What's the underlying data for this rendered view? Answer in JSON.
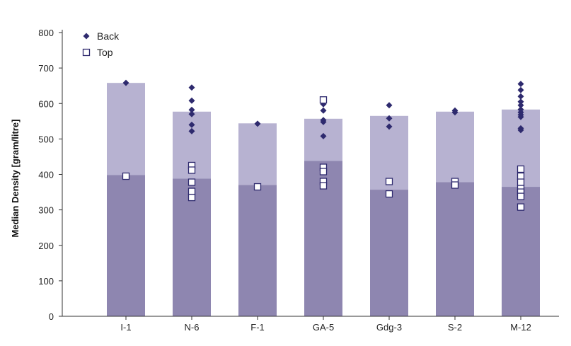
{
  "chart_data": {
    "type": "bar",
    "ylabel": "Median Density [gram/litre]",
    "ylim": [
      0,
      800
    ],
    "yticks": [
      0,
      100,
      200,
      300,
      400,
      500,
      600,
      700,
      800
    ],
    "categories": [
      "I-1",
      "N-6",
      "F-1",
      "GA-5",
      "Gdg-3",
      "S-2",
      "M-12"
    ],
    "bar_stack": {
      "lower_values": [
        398,
        388,
        370,
        438,
        357,
        378,
        365
      ],
      "upper_values": [
        658,
        577,
        544,
        557,
        565,
        577,
        583
      ]
    },
    "series": [
      {
        "name": "Back",
        "marker": "diamond",
        "points": [
          [
            658
          ],
          [
            645,
            608,
            582,
            570,
            540,
            522
          ],
          [
            543
          ],
          [
            598,
            580,
            553,
            548,
            508
          ],
          [
            595,
            558,
            535
          ],
          [
            580,
            575
          ],
          [
            655,
            638,
            620,
            605,
            595,
            583,
            575,
            568,
            562,
            530,
            525
          ]
        ]
      },
      {
        "name": "Top",
        "marker": "square-open",
        "points": [
          [
            395
          ],
          [
            425,
            412,
            378,
            352,
            335
          ],
          [
            365
          ],
          [
            610,
            420,
            408,
            380,
            368
          ],
          [
            380,
            345
          ],
          [
            380,
            370
          ],
          [
            415,
            395,
            378,
            360,
            350,
            338,
            308
          ]
        ]
      }
    ],
    "legend": {
      "position": "top-left"
    },
    "grid": false,
    "colors": {
      "bar_lower": "#8e86b0",
      "bar_upper": "#b7b2d1",
      "back_marker": "#2e2a6e",
      "top_marker_stroke": "#2e2a6e",
      "top_marker_fill": "#ffffff",
      "axis": "#333333"
    }
  }
}
